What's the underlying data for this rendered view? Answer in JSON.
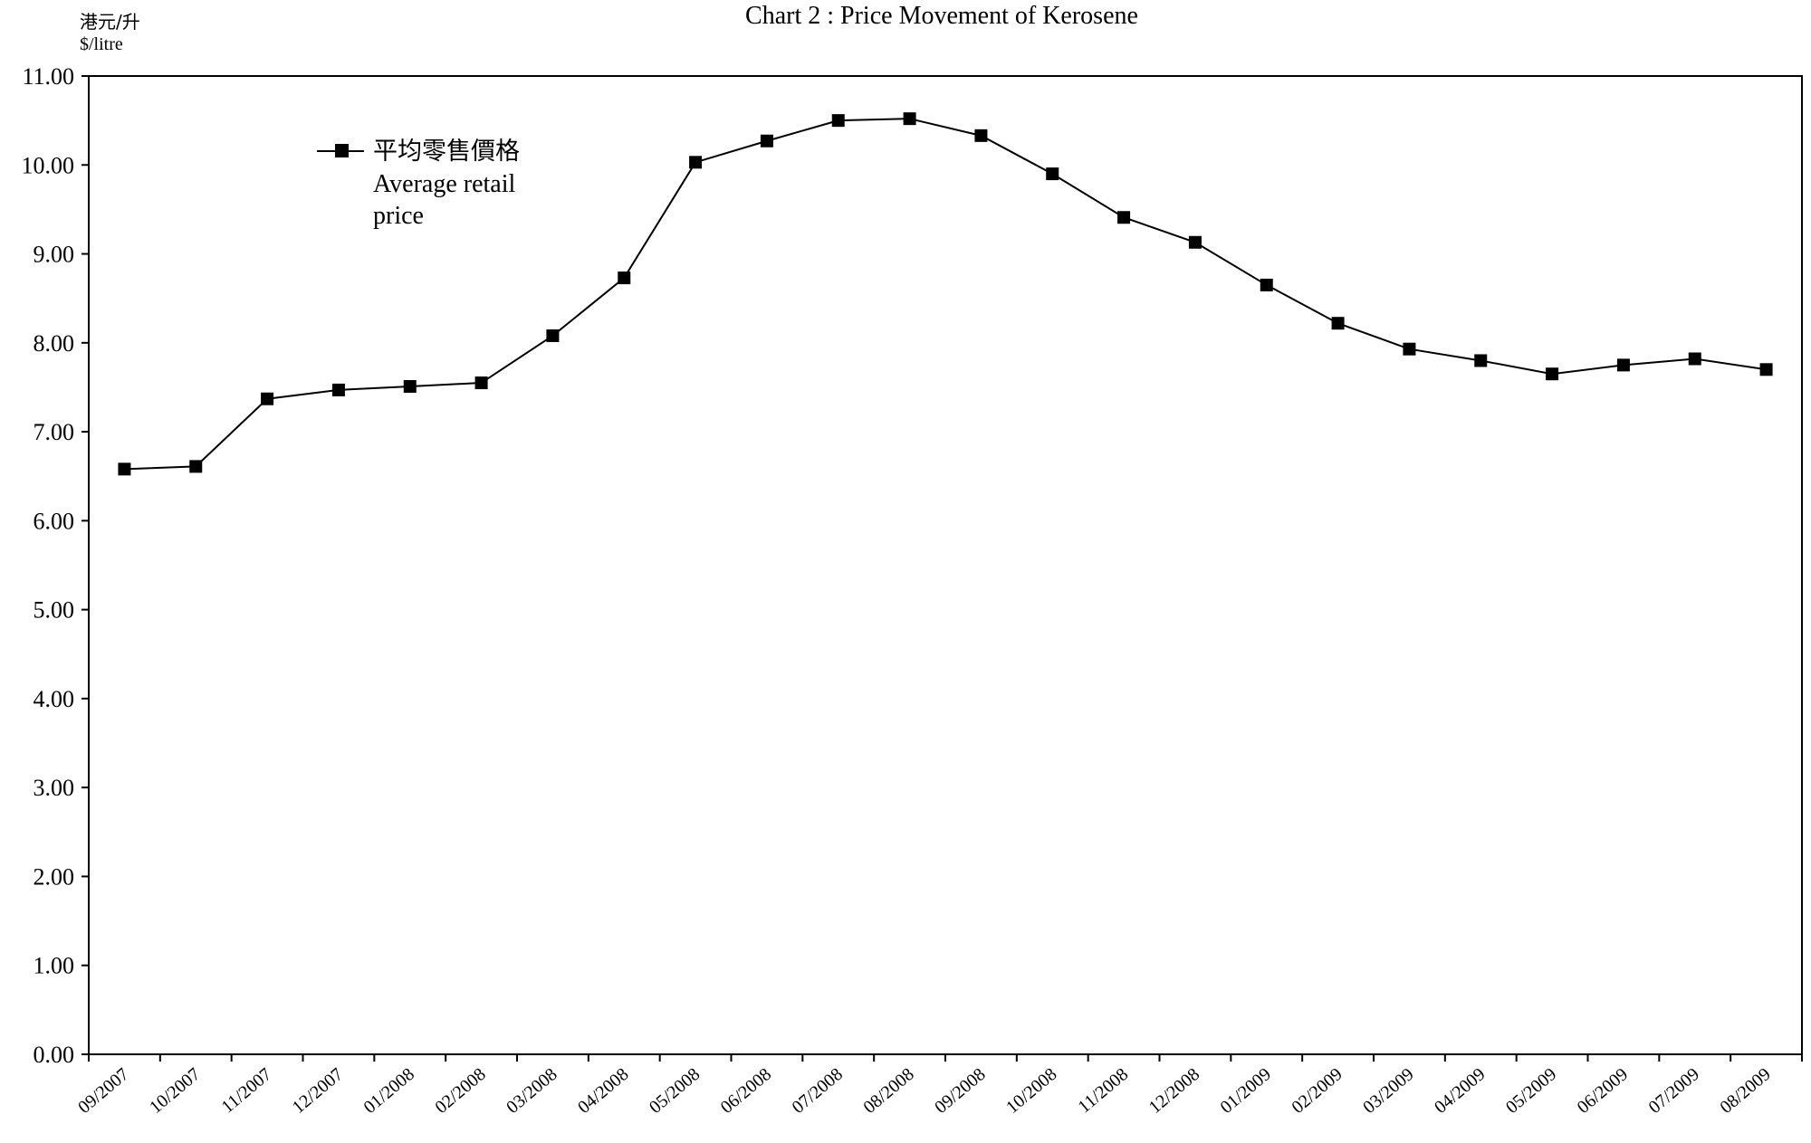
{
  "chart_data": {
    "type": "line",
    "title": "Chart 2 :  Price Movement of Kerosene",
    "ylabel_zh": "港元/升",
    "ylabel": "$/litre",
    "xlabel": "",
    "ylim": [
      0,
      11
    ],
    "yticks": [
      "0.00",
      "1.00",
      "2.00",
      "3.00",
      "4.00",
      "5.00",
      "6.00",
      "7.00",
      "8.00",
      "9.00",
      "10.00",
      "11.00"
    ],
    "categories": [
      "09/2007",
      "10/2007",
      "11/2007",
      "12/2007",
      "01/2008",
      "02/2008",
      "03/2008",
      "04/2008",
      "05/2008",
      "06/2008",
      "07/2008",
      "08/2008",
      "09/2008",
      "10/2008",
      "11/2008",
      "12/2008",
      "01/2009",
      "02/2009",
      "03/2009",
      "04/2009",
      "05/2009",
      "06/2009",
      "07/2009",
      "08/2009"
    ],
    "series": [
      {
        "name_zh": "平均零售價格",
        "name": "Average retail price",
        "values": [
          6.58,
          6.61,
          7.37,
          7.47,
          7.51,
          7.55,
          8.08,
          8.73,
          10.03,
          10.27,
          10.5,
          10.52,
          10.33,
          9.9,
          9.41,
          9.13,
          8.65,
          8.22,
          7.93,
          7.8,
          7.65,
          7.75,
          7.82,
          7.7
        ],
        "color": "#000000",
        "marker": "square"
      }
    ],
    "grid": false,
    "legend_position": "top-left"
  }
}
